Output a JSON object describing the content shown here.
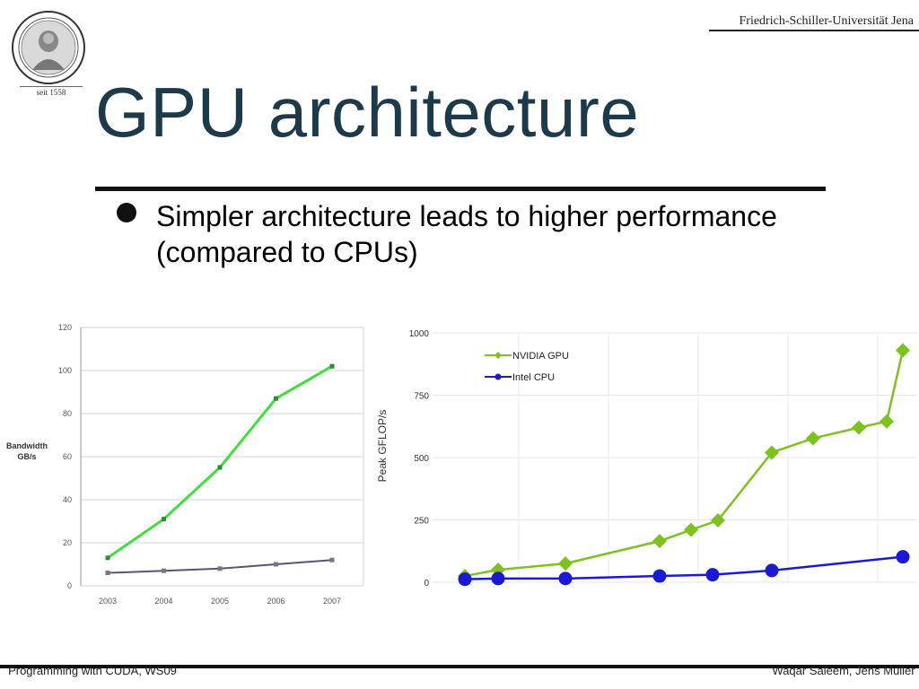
{
  "header": {
    "university": "Friedrich-Schiller-Universität Jena",
    "seal_caption": "seit 1558"
  },
  "slide": {
    "title": "GPU architecture",
    "bullet": "Simpler architecture leads to higher performance (compared to CPUs)"
  },
  "footer": {
    "left": "Programming with CUDA, WS09",
    "right": "Waqar Saleem, Jens Müller"
  },
  "colors": {
    "gpu_green": "#7dc21e",
    "cpu_blue": "#1a1ad6",
    "bw_green": "#3ee03e",
    "bw_gray": "#55557a",
    "title": "#1c3a4a"
  },
  "chart_data": [
    {
      "type": "line",
      "ylabel": "Bandwidth GB/s",
      "ylabel_lines": [
        "Bandwidth",
        "GB/s"
      ],
      "x": [
        "2003",
        "2004",
        "2005",
        "2006",
        "2007"
      ],
      "ylim": [
        0,
        120
      ],
      "yticks": [
        0,
        20,
        40,
        60,
        80,
        100,
        120
      ],
      "grid": true,
      "series": [
        {
          "values": [
            13,
            31,
            55,
            87,
            102
          ]
        },
        {
          "values": [
            6,
            7,
            8,
            10,
            12
          ]
        }
      ]
    },
    {
      "type": "line",
      "ylabel": "Peak GFLOP/s",
      "ylim": [
        0,
        1000
      ],
      "yticks": [
        0,
        250,
        500,
        750,
        1000
      ],
      "grid": true,
      "legend": "top-left",
      "series": [
        {
          "name": "NVIDIA GPU",
          "values": [
            25,
            50,
            75,
            165,
            210,
            248,
            520,
            577,
            620,
            645,
            930
          ]
        },
        {
          "name": "Intel CPU",
          "values": [
            12,
            15,
            15,
            25,
            30,
            47,
            102
          ]
        }
      ]
    }
  ]
}
